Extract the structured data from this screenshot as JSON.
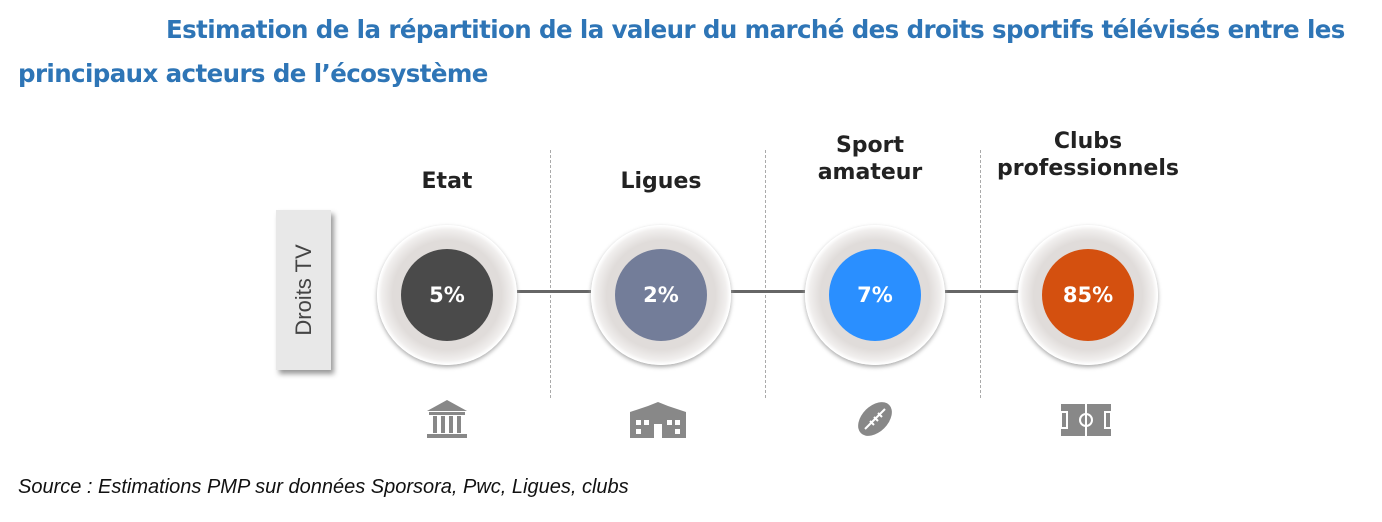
{
  "title": "Estimation de la répartition de la valeur du marché des droits sportifs télévisés entre les principaux acteurs de l’écosystème",
  "row_label": "Droits TV",
  "actors": [
    {
      "name": "Etat",
      "share": "5%",
      "color": "#4a4a4a",
      "icon": "bank-building-icon"
    },
    {
      "name": "Ligues",
      "share": "2%",
      "color": "#737d99",
      "icon": "stadium-building-icon"
    },
    {
      "name": "Sport amateur",
      "share": "7%",
      "color": "#2a8fff",
      "icon": "rugby-ball-icon"
    },
    {
      "name": "Clubs professionnels",
      "share": "85%",
      "color": "#d4500f",
      "icon": "football-pitch-icon"
    }
  ],
  "source": "Source : Estimations PMP sur données Sporsora, Pwc, Ligues, clubs"
}
